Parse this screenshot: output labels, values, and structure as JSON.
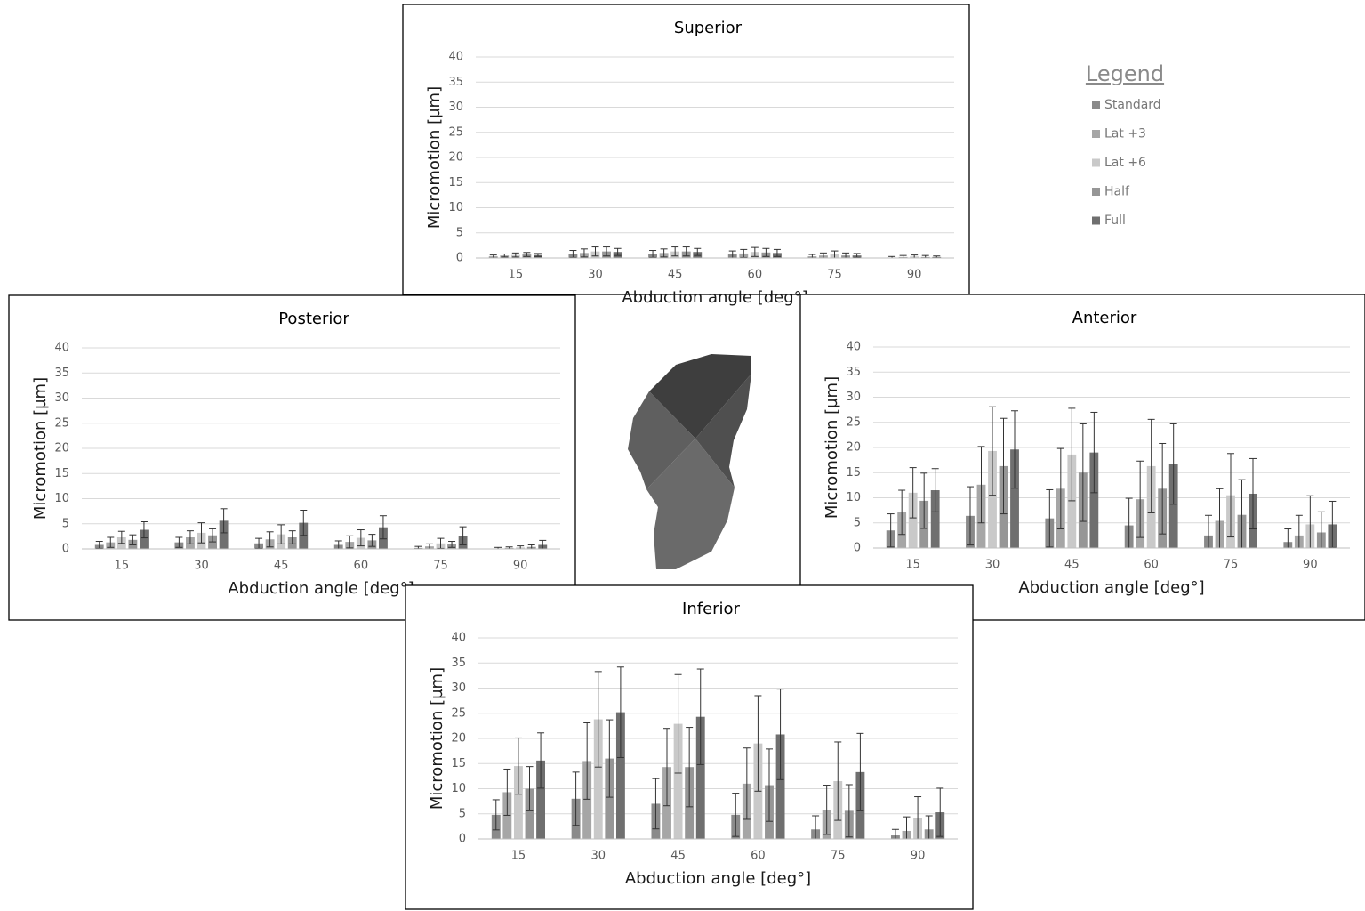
{
  "chart_data": [
    {
      "type": "bar",
      "title": "Superior",
      "x_label": "Abduction angle [deg°]",
      "y_label": "Micromotion [µm]",
      "categories": [
        "15",
        "30",
        "45",
        "60",
        "75",
        "90"
      ],
      "ylim": [
        0,
        40
      ],
      "yticks": [
        0,
        5,
        10,
        15,
        20,
        25,
        30,
        35,
        40
      ],
      "grid": true,
      "series": [
        {
          "name": "Standard",
          "color": "#8a8a8a",
          "values": [
            0.3,
            0.8,
            0.8,
            0.7,
            0.3,
            0.1
          ],
          "errors": [
            0.3,
            0.7,
            0.7,
            0.7,
            0.4,
            0.2
          ]
        },
        {
          "name": "Lat +3",
          "color": "#a6a6a6",
          "values": [
            0.5,
            1.0,
            1.0,
            0.9,
            0.5,
            0.2
          ],
          "errors": [
            0.3,
            0.8,
            0.8,
            0.8,
            0.5,
            0.3
          ]
        },
        {
          "name": "Lat +6",
          "color": "#c9c9c9",
          "values": [
            0.6,
            1.3,
            1.3,
            1.2,
            0.7,
            0.3
          ],
          "errors": [
            0.4,
            0.9,
            0.9,
            0.9,
            0.7,
            0.3
          ]
        },
        {
          "name": "Half",
          "color": "#969696",
          "values": [
            0.7,
            1.3,
            1.3,
            1.1,
            0.5,
            0.2
          ],
          "errors": [
            0.4,
            0.9,
            0.9,
            0.8,
            0.5,
            0.3
          ]
        },
        {
          "name": "Full",
          "color": "#6f6f6f",
          "values": [
            0.6,
            1.2,
            1.2,
            1.0,
            0.5,
            0.2
          ],
          "errors": [
            0.3,
            0.7,
            0.7,
            0.7,
            0.4,
            0.2
          ]
        }
      ]
    },
    {
      "type": "bar",
      "title": "Posterior",
      "x_label": "Abduction angle [deg°]",
      "y_label": "Micromotion [µm]",
      "categories": [
        "15",
        "30",
        "45",
        "60",
        "75",
        "90"
      ],
      "ylim": [
        0,
        40
      ],
      "yticks": [
        0,
        5,
        10,
        15,
        20,
        25,
        30,
        35,
        40
      ],
      "grid": true,
      "series": [
        {
          "color": "#8a8a8a",
          "values": [
            0.8,
            1.3,
            1.1,
            0.8,
            0.2,
            0.1
          ],
          "errors": [
            0.7,
            1.0,
            1.0,
            0.8,
            0.3,
            0.2
          ]
        },
        {
          "color": "#a6a6a6",
          "values": [
            1.3,
            2.3,
            1.9,
            1.4,
            0.5,
            0.2
          ],
          "errors": [
            1.0,
            1.3,
            1.5,
            1.2,
            0.5,
            0.2
          ]
        },
        {
          "color": "#c9c9c9",
          "values": [
            2.3,
            3.2,
            2.9,
            2.2,
            1.1,
            0.3
          ],
          "errors": [
            1.2,
            2.0,
            1.9,
            1.6,
            1.0,
            0.3
          ]
        },
        {
          "color": "#969696",
          "values": [
            1.8,
            2.7,
            2.3,
            1.7,
            0.9,
            0.4
          ],
          "errors": [
            1.0,
            1.3,
            1.3,
            1.2,
            0.6,
            0.4
          ]
        },
        {
          "color": "#6f6f6f",
          "values": [
            3.8,
            5.6,
            5.2,
            4.3,
            2.6,
            0.8
          ],
          "errors": [
            1.6,
            2.4,
            2.5,
            2.3,
            1.8,
            0.9
          ]
        }
      ]
    },
    {
      "type": "bar",
      "title": "Anterior",
      "x_label": "Abduction angle [deg°]",
      "y_label": "Micromotion [µm]",
      "categories": [
        "15",
        "30",
        "45",
        "60",
        "75",
        "90"
      ],
      "ylim": [
        0,
        40
      ],
      "yticks": [
        0,
        5,
        10,
        15,
        20,
        25,
        30,
        35,
        40
      ],
      "grid": true,
      "series": [
        {
          "color": "#8a8a8a",
          "values": [
            3.5,
            6.4,
            5.9,
            4.5,
            2.5,
            1.2
          ],
          "errors": [
            3.3,
            5.8,
            5.7,
            5.4,
            4.0,
            2.6
          ]
        },
        {
          "color": "#a6a6a6",
          "values": [
            7.1,
            12.6,
            11.8,
            9.7,
            5.4,
            2.5
          ],
          "errors": [
            4.4,
            7.6,
            8.0,
            7.6,
            6.4,
            4.0
          ]
        },
        {
          "color": "#c9c9c9",
          "values": [
            11.0,
            19.3,
            18.6,
            16.3,
            10.5,
            4.7
          ],
          "errors": [
            5.0,
            8.8,
            9.2,
            9.3,
            8.3,
            5.7
          ]
        },
        {
          "color": "#969696",
          "values": [
            9.4,
            16.3,
            15.0,
            11.8,
            6.6,
            3.1
          ],
          "errors": [
            5.5,
            9.5,
            9.7,
            9.0,
            7.0,
            4.1
          ]
        },
        {
          "color": "#6f6f6f",
          "values": [
            11.5,
            19.6,
            19.0,
            16.7,
            10.8,
            4.7
          ],
          "errors": [
            4.3,
            7.7,
            8.0,
            8.0,
            7.0,
            4.6
          ]
        }
      ]
    },
    {
      "type": "bar",
      "title": "Inferior",
      "x_label": "Abduction angle [deg°]",
      "y_label": "Micromotion [µm]",
      "categories": [
        "15",
        "30",
        "45",
        "60",
        "75",
        "90"
      ],
      "ylim": [
        0,
        40
      ],
      "yticks": [
        0,
        5,
        10,
        15,
        20,
        25,
        30,
        35,
        40
      ],
      "grid": true,
      "series": [
        {
          "color": "#8a8a8a",
          "values": [
            4.8,
            8.0,
            7.0,
            4.8,
            1.9,
            0.7
          ],
          "errors": [
            3.0,
            5.3,
            5.0,
            4.3,
            2.7,
            1.2
          ]
        },
        {
          "color": "#a6a6a6",
          "values": [
            9.3,
            15.5,
            14.3,
            11.0,
            5.8,
            1.6
          ],
          "errors": [
            4.6,
            7.6,
            7.7,
            7.1,
            4.9,
            2.8
          ]
        },
        {
          "color": "#c9c9c9",
          "values": [
            14.5,
            23.8,
            22.9,
            19.0,
            11.5,
            4.1
          ],
          "errors": [
            5.6,
            9.5,
            9.8,
            9.5,
            7.8,
            4.3
          ]
        },
        {
          "color": "#969696",
          "values": [
            10.0,
            16.0,
            14.3,
            10.7,
            5.6,
            1.9
          ],
          "errors": [
            4.4,
            7.7,
            7.9,
            7.2,
            5.2,
            2.7
          ]
        },
        {
          "color": "#6f6f6f",
          "values": [
            15.6,
            25.2,
            24.3,
            20.8,
            13.3,
            5.3
          ],
          "errors": [
            5.5,
            9.0,
            9.5,
            9.0,
            7.7,
            4.8
          ]
        }
      ]
    }
  ],
  "legend": {
    "title": "Legend"
  }
}
